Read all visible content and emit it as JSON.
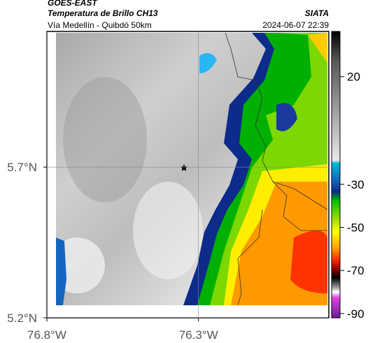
{
  "header": {
    "source": "GOES-EAST",
    "product": "Temperatura de Brillo CH13",
    "org": "SIATA",
    "route": "Vía Medellín - Quibdó 50km",
    "timestamp": "2024-06-07 22:39"
  },
  "map": {
    "xlim": [
      -76.8,
      -75.87
    ],
    "ylim": [
      5.2,
      6.15
    ],
    "xticks": [
      {
        "value": -76.8,
        "label": "76.8°W"
      },
      {
        "value": -76.3,
        "label": "76.3°W"
      }
    ],
    "yticks": [
      {
        "value": 5.7,
        "label": "5.7°N"
      },
      {
        "value": 5.2,
        "label": "5.2°N"
      }
    ]
  },
  "colorbar": {
    "lim": [
      -92,
      41
    ],
    "ticks": [
      20,
      -30,
      -50,
      -70,
      -90
    ]
  }
}
